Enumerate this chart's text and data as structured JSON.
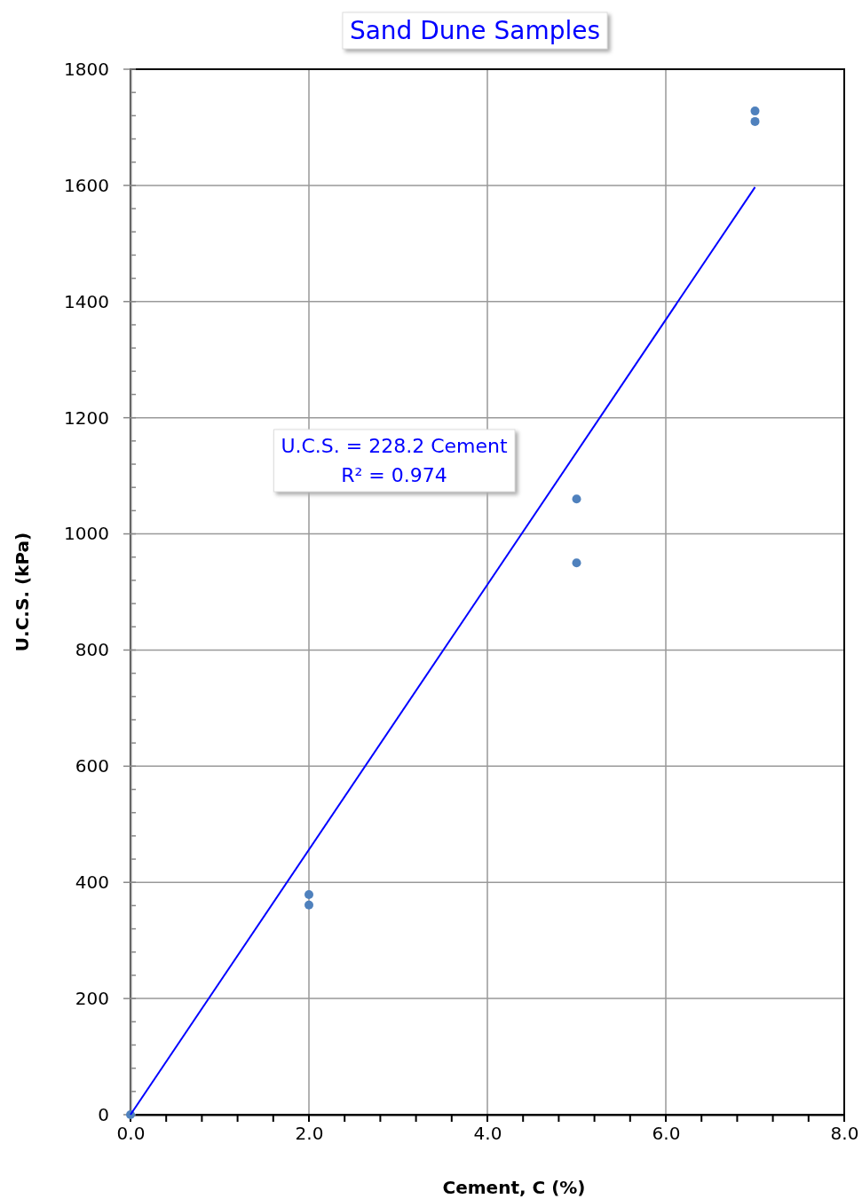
{
  "chart_data": {
    "type": "scatter",
    "title": "Sand Dune Samples",
    "xlabel": "Cement, C (%)",
    "ylabel": "U.C.S. (kPa)",
    "xlim": [
      0,
      8
    ],
    "ylim": [
      0,
      1800
    ],
    "xticks": [
      {
        "value": 0,
        "label": "0.0"
      },
      {
        "value": 0.4,
        "label": null
      },
      {
        "value": 0.8,
        "label": null
      },
      {
        "value": 1.2,
        "label": null
      },
      {
        "value": 1.6,
        "label": null
      },
      {
        "value": 2,
        "label": "2.0"
      },
      {
        "value": 2.4,
        "label": null
      },
      {
        "value": 2.8,
        "label": null
      },
      {
        "value": 3.2,
        "label": null
      },
      {
        "value": 3.6,
        "label": null
      },
      {
        "value": 4,
        "label": "4.0"
      },
      {
        "value": 4.4,
        "label": null
      },
      {
        "value": 4.8,
        "label": null
      },
      {
        "value": 5.2,
        "label": null
      },
      {
        "value": 5.6,
        "label": null
      },
      {
        "value": 6,
        "label": "6.0"
      },
      {
        "value": 6.4,
        "label": null
      },
      {
        "value": 6.8,
        "label": null
      },
      {
        "value": 7.2,
        "label": null
      },
      {
        "value": 7.6,
        "label": null
      },
      {
        "value": 8,
        "label": "8.0"
      }
    ],
    "yticks": [
      0,
      {
        "value": 40,
        "label": null
      },
      {
        "value": 80,
        "label": null
      },
      {
        "value": 120,
        "label": null
      },
      {
        "value": 160,
        "label": null
      },
      200,
      {
        "value": 240,
        "label": null
      },
      {
        "value": 280,
        "label": null
      },
      {
        "value": 320,
        "label": null
      },
      {
        "value": 360,
        "label": null
      },
      400,
      {
        "value": 440,
        "label": null
      },
      {
        "value": 480,
        "label": null
      },
      {
        "value": 520,
        "label": null
      },
      {
        "value": 560,
        "label": null
      },
      600,
      {
        "value": 640,
        "label": null
      },
      {
        "value": 680,
        "label": null
      },
      {
        "value": 720,
        "label": null
      },
      {
        "value": 760,
        "label": null
      },
      800,
      {
        "value": 840,
        "label": null
      },
      {
        "value": 880,
        "label": null
      },
      {
        "value": 920,
        "label": null
      },
      {
        "value": 960,
        "label": null
      },
      1000,
      {
        "value": 1040,
        "label": null
      },
      {
        "value": 1080,
        "label": null
      },
      {
        "value": 1120,
        "label": null
      },
      {
        "value": 1160,
        "label": null
      },
      1200,
      {
        "value": 1240,
        "label": null
      },
      {
        "value": 1280,
        "label": null
      },
      {
        "value": 1320,
        "label": null
      },
      {
        "value": 1360,
        "label": null
      },
      1400,
      {
        "value": 1440,
        "label": null
      },
      {
        "value": 1480,
        "label": null
      },
      {
        "value": 1520,
        "label": null
      },
      {
        "value": 1560,
        "label": null
      },
      1600,
      {
        "value": 1640,
        "label": null
      },
      {
        "value": 1680,
        "label": null
      },
      {
        "value": 1720,
        "label": null
      },
      {
        "value": 1760,
        "label": null
      },
      1800
    ],
    "grid": true,
    "marker": "circle",
    "series": [
      {
        "color": "#4f81bd",
        "x": [
          0,
          2,
          2,
          5,
          5,
          7,
          7
        ],
        "values": [
          0,
          379,
          361,
          1060,
          950,
          1728,
          1710
        ]
      },
      {
        "type": "line",
        "color": "#0000ff",
        "x": [
          0,
          7
        ],
        "values": [
          0,
          1597
        ],
        "marker": "none",
        "line_style": "solid"
      }
    ],
    "annotations": [
      "U.C.S. = 228.2 Cement",
      "R² = 0.974"
    ]
  }
}
